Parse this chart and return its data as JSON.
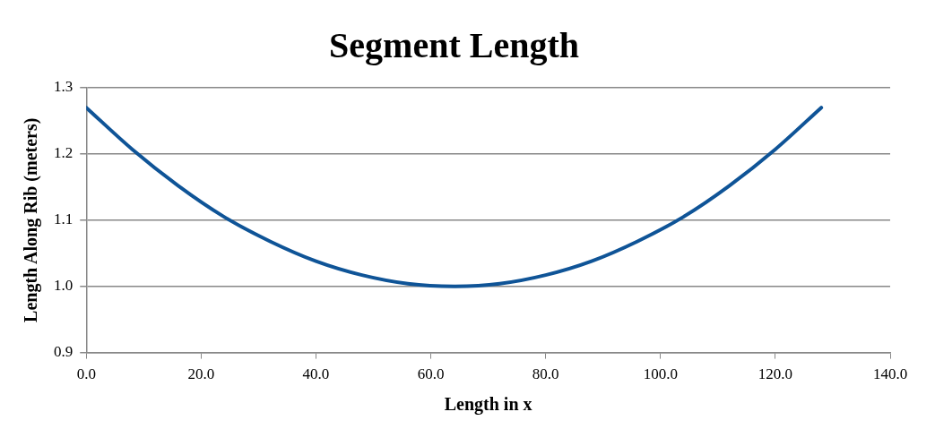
{
  "chart_data": {
    "type": "line",
    "title": "Segment Length",
    "xlabel": "Length in x",
    "ylabel": "Length Along Rib (meters)",
    "x": [
      0,
      8,
      16,
      24,
      32,
      40,
      48,
      56,
      64,
      72,
      80,
      88,
      96,
      104,
      112,
      120,
      128
    ],
    "series": [
      {
        "color": "#0f5497",
        "values": [
          1.27,
          1.207,
          1.152,
          1.105,
          1.068,
          1.038,
          1.017,
          1.004,
          1.0,
          1.004,
          1.017,
          1.038,
          1.068,
          1.105,
          1.152,
          1.207,
          1.27
        ]
      }
    ],
    "xlim": [
      0,
      140
    ],
    "xticks": [
      {
        "value": 0,
        "label": "0.0"
      },
      {
        "value": 20,
        "label": "20.0"
      },
      {
        "value": 40,
        "label": "40.0"
      },
      {
        "value": 60,
        "label": "60.0"
      },
      {
        "value": 80,
        "label": "80.0"
      },
      {
        "value": 100,
        "label": "100.0"
      },
      {
        "value": 120,
        "label": "120.0"
      },
      {
        "value": 140,
        "label": "140.0"
      }
    ],
    "ylim": [
      0.9,
      1.3
    ],
    "yticks": [
      {
        "value": 0.9,
        "label": "0.9"
      },
      {
        "value": 1.0,
        "label": "1.0"
      },
      {
        "value": 1.1,
        "label": "1.1"
      },
      {
        "value": 1.2,
        "label": "1.2"
      },
      {
        "value": 1.3,
        "label": "1.3"
      }
    ],
    "grid": "y",
    "legend": false,
    "marker": "none",
    "line_style": "solid"
  }
}
